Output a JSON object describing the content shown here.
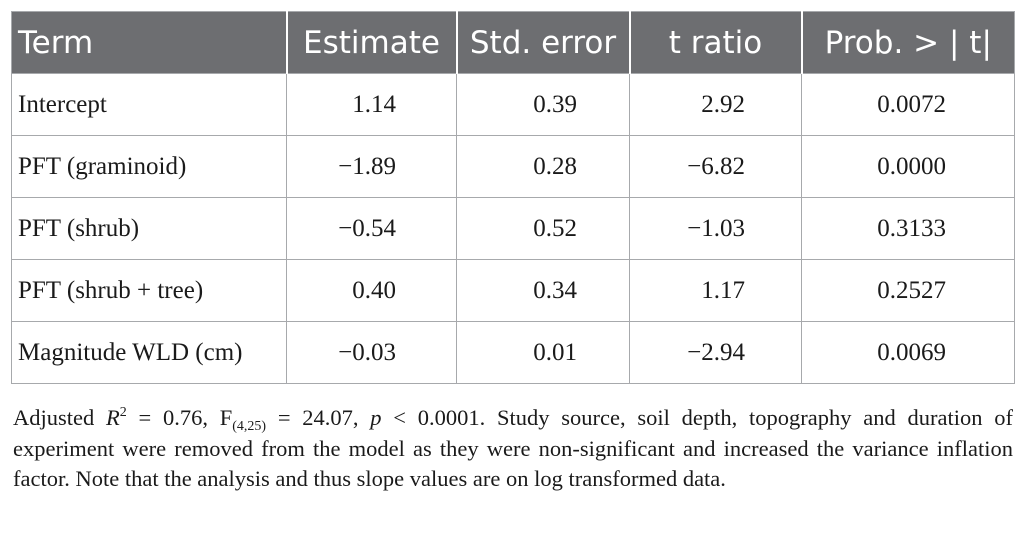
{
  "table": {
    "headers": [
      "Term",
      "Estimate",
      "Std. error",
      "t ratio",
      "Prob. > | t|"
    ],
    "rows": [
      {
        "term": "Intercept",
        "estimate": "1.14",
        "std_error": "0.39",
        "t_ratio": "2.92",
        "prob": "0.0072"
      },
      {
        "term": "PFT (graminoid)",
        "estimate": "−1.89",
        "std_error": "0.28",
        "t_ratio": "−6.82",
        "prob": "0.0000"
      },
      {
        "term": "PFT (shrub)",
        "estimate": "−0.54",
        "std_error": "0.52",
        "t_ratio": "−1.03",
        "prob": "0.3133"
      },
      {
        "term": "PFT (shrub + tree)",
        "estimate": "0.40",
        "std_error": "0.34",
        "t_ratio": "1.17",
        "prob": "0.2527"
      },
      {
        "term": "Magnitude WLD (cm)",
        "estimate": "−0.03",
        "std_error": "0.01",
        "t_ratio": "−2.94",
        "prob": "0.0069"
      }
    ]
  },
  "note": {
    "adjusted": "Adjusted ",
    "r_letter": "R",
    "r_sup": "2",
    "r_value": " = 0.76, F",
    "f_sub": "(4,25)",
    "f_value": " = 24.07, ",
    "p_letter": "p",
    "p_value": " < 0.0001. Study source, soil depth, topography and duration of experiment were removed from the model as they were non-significant and increased the variance inflation factor. Note that the analysis and thus slope values are on log transformed data."
  }
}
